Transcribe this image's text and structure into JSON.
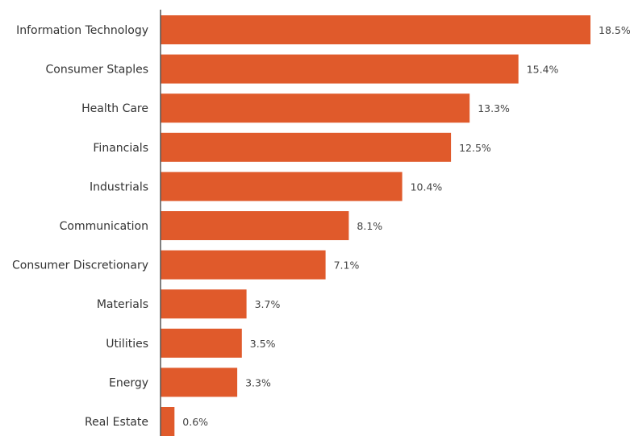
{
  "chart_data": {
    "type": "bar",
    "orientation": "horizontal",
    "categories": [
      "Information Technology",
      "Consumer Staples",
      "Health Care",
      "Financials",
      "Industrials",
      "Communication",
      "Consumer Discretionary",
      "Materials",
      "Utilities",
      "Energy",
      "Real Estate"
    ],
    "values": [
      18.5,
      15.4,
      13.3,
      12.5,
      10.4,
      8.1,
      7.1,
      3.7,
      3.5,
      3.3,
      0.6
    ],
    "value_labels": [
      "18.5%",
      "15.4%",
      "13.3%",
      "12.5%",
      "10.4%",
      "8.1%",
      "7.1%",
      "3.7%",
      "3.5%",
      "3.3%",
      "0.6%"
    ],
    "title": "",
    "xlabel": "",
    "ylabel": "",
    "xlim": [
      0,
      18.5
    ],
    "grid": false,
    "legend": "none",
    "bar_color": "#e05a2b",
    "axis_color": "#555555"
  }
}
